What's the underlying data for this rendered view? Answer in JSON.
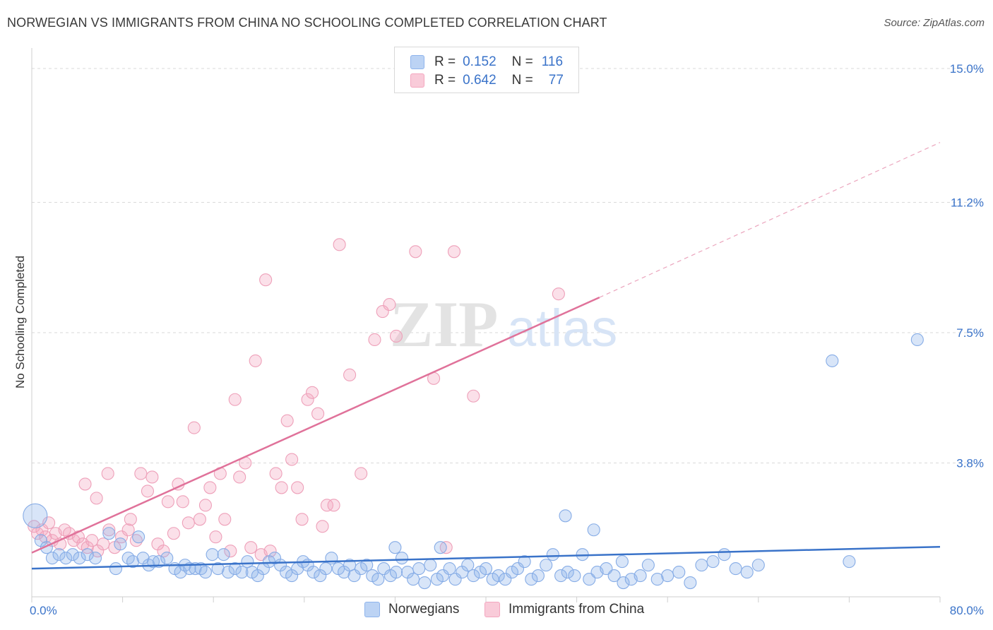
{
  "title": "NORWEGIAN VS IMMIGRANTS FROM CHINA NO SCHOOLING COMPLETED CORRELATION CHART",
  "source": "Source: ZipAtlas.com",
  "watermark": {
    "zip": "ZIP",
    "atlas": "atlas"
  },
  "legend": {
    "rows": [
      {
        "r_label": "R =",
        "r_value": "0.152",
        "n_label": "N =",
        "n_value": "116"
      },
      {
        "r_label": "R =",
        "r_value": "0.642",
        "n_label": "N =",
        "n_value": "77"
      }
    ]
  },
  "bottom_legend": [
    "Norwegians",
    "Immigrants from China"
  ],
  "chart_data": {
    "type": "scatter",
    "title": "NORWEGIAN VS IMMIGRANTS FROM CHINA NO SCHOOLING COMPLETED CORRELATION CHART",
    "xlabel": "",
    "ylabel": "No Schooling Completed",
    "xlim": [
      0,
      80
    ],
    "ylim": [
      0,
      15
    ],
    "x_tick_labels": [
      "0.0%",
      "80.0%"
    ],
    "y_ticks": [
      3.8,
      7.5,
      11.2,
      15.0
    ],
    "y_tick_labels": [
      "3.8%",
      "7.5%",
      "11.2%",
      "15.0%"
    ],
    "grid": true,
    "colors": {
      "norwegians": "#8fb4ec",
      "china": "#f4a6bf",
      "blue_line": "#3a73c9",
      "pink_line": "#e0729a"
    },
    "series": [
      {
        "name": "Norwegians",
        "r": 0.152,
        "n": 116,
        "trend": {
          "x0": 0,
          "y0": 0.8,
          "x1": 80,
          "y1": 1.42
        },
        "points": [
          [
            0.3,
            2.3
          ],
          [
            0.8,
            1.6
          ],
          [
            1.3,
            1.4
          ],
          [
            1.8,
            1.1
          ],
          [
            2.4,
            1.2
          ],
          [
            3.0,
            1.1
          ],
          [
            3.6,
            1.2
          ],
          [
            4.2,
            1.1
          ],
          [
            4.9,
            1.2
          ],
          [
            5.6,
            1.1
          ],
          [
            6.8,
            1.8
          ],
          [
            7.4,
            0.8
          ],
          [
            7.8,
            1.5
          ],
          [
            8.5,
            1.1
          ],
          [
            8.9,
            1.0
          ],
          [
            9.4,
            1.7
          ],
          [
            9.8,
            1.1
          ],
          [
            10.3,
            0.9
          ],
          [
            10.7,
            1.0
          ],
          [
            11.2,
            1.0
          ],
          [
            11.9,
            1.1
          ],
          [
            12.6,
            0.8
          ],
          [
            13.1,
            0.7
          ],
          [
            13.5,
            0.9
          ],
          [
            13.9,
            0.8
          ],
          [
            14.4,
            0.8
          ],
          [
            14.9,
            0.8
          ],
          [
            15.3,
            0.7
          ],
          [
            15.9,
            1.2
          ],
          [
            16.4,
            0.8
          ],
          [
            16.9,
            1.2
          ],
          [
            17.3,
            0.7
          ],
          [
            17.9,
            0.8
          ],
          [
            18.5,
            0.7
          ],
          [
            19.0,
            1.0
          ],
          [
            19.4,
            0.7
          ],
          [
            19.9,
            0.6
          ],
          [
            20.4,
            0.8
          ],
          [
            20.9,
            1.0
          ],
          [
            21.4,
            1.1
          ],
          [
            21.9,
            0.9
          ],
          [
            22.4,
            0.7
          ],
          [
            22.9,
            0.6
          ],
          [
            23.4,
            0.8
          ],
          [
            23.9,
            1.0
          ],
          [
            24.3,
            0.9
          ],
          [
            24.8,
            0.7
          ],
          [
            25.4,
            0.6
          ],
          [
            25.9,
            0.8
          ],
          [
            26.4,
            1.1
          ],
          [
            27.0,
            0.8
          ],
          [
            27.5,
            0.7
          ],
          [
            28.0,
            0.9
          ],
          [
            28.4,
            0.6
          ],
          [
            29.0,
            0.8
          ],
          [
            29.5,
            0.9
          ],
          [
            30.0,
            0.6
          ],
          [
            30.5,
            0.5
          ],
          [
            31.0,
            0.8
          ],
          [
            31.6,
            0.6
          ],
          [
            32.1,
            0.7
          ],
          [
            32.6,
            1.1
          ],
          [
            33.1,
            0.7
          ],
          [
            33.6,
            0.5
          ],
          [
            34.1,
            0.8
          ],
          [
            34.6,
            0.4
          ],
          [
            35.1,
            0.9
          ],
          [
            35.7,
            0.5
          ],
          [
            36.2,
            0.6
          ],
          [
            36.8,
            0.8
          ],
          [
            37.3,
            0.5
          ],
          [
            37.9,
            0.7
          ],
          [
            38.4,
            0.9
          ],
          [
            38.9,
            0.6
          ],
          [
            39.5,
            0.7
          ],
          [
            40.0,
            0.8
          ],
          [
            40.6,
            0.5
          ],
          [
            41.1,
            0.6
          ],
          [
            41.7,
            0.5
          ],
          [
            42.3,
            0.7
          ],
          [
            42.8,
            0.8
          ],
          [
            43.4,
            1.0
          ],
          [
            44.0,
            0.5
          ],
          [
            44.6,
            0.6
          ],
          [
            45.3,
            0.9
          ],
          [
            45.9,
            1.2
          ],
          [
            46.6,
            0.6
          ],
          [
            47.2,
            0.7
          ],
          [
            47.8,
            0.6
          ],
          [
            48.5,
            1.2
          ],
          [
            49.1,
            0.5
          ],
          [
            49.8,
            0.7
          ],
          [
            50.6,
            0.8
          ],
          [
            51.3,
            0.6
          ],
          [
            52.1,
            0.4
          ],
          [
            52.8,
            0.5
          ],
          [
            53.6,
            0.6
          ],
          [
            54.3,
            0.9
          ],
          [
            55.1,
            0.5
          ],
          [
            56.0,
            0.6
          ],
          [
            57.0,
            0.7
          ],
          [
            58.0,
            0.4
          ],
          [
            59.0,
            0.9
          ],
          [
            60.0,
            1.0
          ],
          [
            61.0,
            1.2
          ],
          [
            62.0,
            0.8
          ],
          [
            63.0,
            0.7
          ],
          [
            64.0,
            0.9
          ],
          [
            70.5,
            6.7
          ],
          [
            72.0,
            1.0
          ],
          [
            78.0,
            7.3
          ],
          [
            47.0,
            2.3
          ],
          [
            49.5,
            1.9
          ],
          [
            52.0,
            1.0
          ],
          [
            36.0,
            1.4
          ],
          [
            32.0,
            1.4
          ]
        ]
      },
      {
        "name": "Immigrants from China",
        "r": 0.642,
        "n": 77,
        "trend": {
          "x0": 0,
          "y0": 1.25,
          "x1": 50,
          "y1": 8.5,
          "x_ext_end": 80,
          "y_ext_end": 12.9
        },
        "points": [
          [
            0.2,
            2.0
          ],
          [
            0.5,
            1.8
          ],
          [
            0.9,
            1.9
          ],
          [
            1.2,
            1.7
          ],
          [
            1.5,
            2.1
          ],
          [
            1.8,
            1.6
          ],
          [
            2.1,
            1.8
          ],
          [
            2.5,
            1.5
          ],
          [
            2.9,
            1.9
          ],
          [
            3.3,
            1.8
          ],
          [
            3.7,
            1.6
          ],
          [
            4.1,
            1.7
          ],
          [
            4.5,
            1.5
          ],
          [
            4.9,
            1.4
          ],
          [
            5.3,
            1.6
          ],
          [
            5.8,
            1.3
          ],
          [
            6.3,
            1.5
          ],
          [
            6.8,
            1.9
          ],
          [
            7.3,
            1.4
          ],
          [
            7.9,
            1.7
          ],
          [
            8.5,
            1.9
          ],
          [
            9.2,
            1.6
          ],
          [
            4.7,
            3.2
          ],
          [
            5.7,
            2.8
          ],
          [
            6.7,
            3.5
          ],
          [
            8.7,
            2.2
          ],
          [
            9.6,
            3.5
          ],
          [
            10.2,
            3.0
          ],
          [
            10.6,
            3.4
          ],
          [
            11.1,
            1.5
          ],
          [
            11.6,
            1.3
          ],
          [
            12.0,
            2.7
          ],
          [
            12.5,
            1.8
          ],
          [
            12.9,
            3.2
          ],
          [
            13.3,
            2.7
          ],
          [
            13.8,
            2.1
          ],
          [
            14.3,
            4.8
          ],
          [
            14.8,
            2.2
          ],
          [
            15.3,
            2.6
          ],
          [
            15.7,
            3.1
          ],
          [
            16.2,
            1.7
          ],
          [
            16.6,
            3.5
          ],
          [
            17.0,
            2.2
          ],
          [
            17.5,
            1.3
          ],
          [
            17.9,
            5.6
          ],
          [
            18.3,
            3.4
          ],
          [
            18.8,
            3.8
          ],
          [
            19.3,
            1.4
          ],
          [
            19.7,
            6.7
          ],
          [
            20.2,
            1.2
          ],
          [
            20.6,
            9.0
          ],
          [
            21.0,
            1.3
          ],
          [
            21.5,
            3.5
          ],
          [
            22.0,
            3.1
          ],
          [
            22.5,
            5.0
          ],
          [
            22.9,
            3.9
          ],
          [
            23.4,
            3.1
          ],
          [
            23.8,
            2.2
          ],
          [
            24.3,
            5.6
          ],
          [
            24.7,
            5.8
          ],
          [
            25.2,
            5.2
          ],
          [
            25.6,
            2.0
          ],
          [
            26.0,
            2.6
          ],
          [
            26.6,
            2.6
          ],
          [
            27.1,
            10.0
          ],
          [
            28.0,
            6.3
          ],
          [
            29.0,
            3.5
          ],
          [
            30.2,
            7.3
          ],
          [
            30.9,
            8.1
          ],
          [
            31.5,
            8.3
          ],
          [
            32.1,
            7.4
          ],
          [
            33.8,
            9.8
          ],
          [
            35.4,
            6.2
          ],
          [
            36.5,
            1.4
          ],
          [
            37.2,
            9.8
          ],
          [
            38.9,
            5.7
          ],
          [
            46.4,
            8.6
          ]
        ]
      }
    ]
  }
}
